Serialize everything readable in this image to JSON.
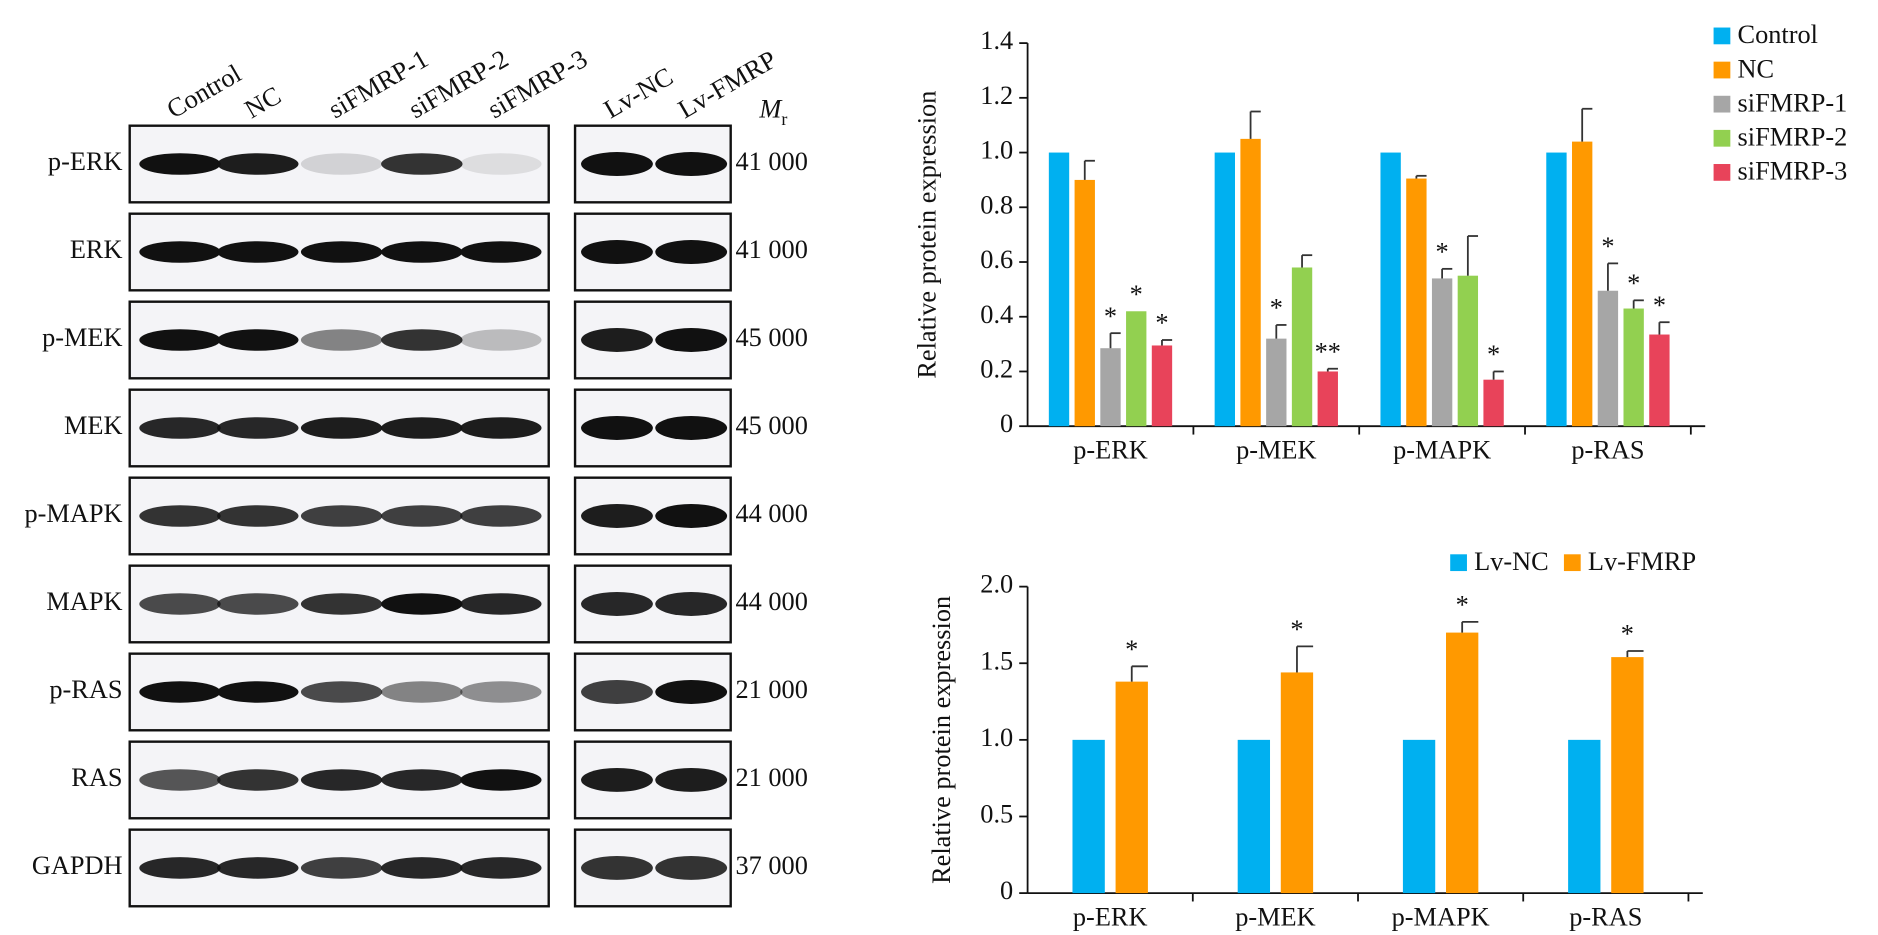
{
  "blot": {
    "lanes_left": [
      "Control",
      "NC",
      "siFMRP-1",
      "siFMRP-2",
      "siFMRP-3"
    ],
    "lanes_right": [
      "Lv-NC",
      "Lv-FMRP"
    ],
    "mr_label": {
      "symbol": "M",
      "subscript": "r"
    },
    "rows": [
      {
        "protein": "p-ERK",
        "mr": "41 000"
      },
      {
        "protein": "ERK",
        "mr": "41 000"
      },
      {
        "protein": "p-MEK",
        "mr": "45 000"
      },
      {
        "protein": "MEK",
        "mr": "45 000"
      },
      {
        "protein": "p-MAPK",
        "mr": "44 000"
      },
      {
        "protein": "MAPK",
        "mr": "44 000"
      },
      {
        "protein": "p-RAS",
        "mr": "21 000"
      },
      {
        "protein": "RAS",
        "mr": "21 000"
      },
      {
        "protein": "GAPDH",
        "mr": "37 000"
      }
    ]
  },
  "chart_data": [
    {
      "type": "bar",
      "y_label": "Relative protein expression",
      "categories": [
        "p-ERK",
        "p-MEK",
        "p-MAPK",
        "p-RAS"
      ],
      "ylim": [
        0,
        1.4
      ],
      "yticks": [
        0,
        0.2,
        0.4,
        0.6,
        0.8,
        {
          "value": 1,
          "label": "1.0"
        },
        1.2,
        1.4
      ],
      "legend": "right",
      "series": [
        {
          "name": "Control",
          "color": "#00b0f0",
          "values": [
            1,
            1,
            1,
            1
          ],
          "errors": [
            0,
            0,
            0,
            0
          ],
          "significance": [
            null,
            null,
            null,
            null
          ]
        },
        {
          "name": "NC",
          "color": "#ff9900",
          "values": [
            0.9,
            1.05,
            0.905,
            1.04
          ],
          "errors": [
            0.07,
            0.1,
            0.01,
            0.12
          ],
          "significance": [
            null,
            null,
            null,
            null
          ]
        },
        {
          "name": "siFMRP-1",
          "color": "#a6a6a6",
          "values": [
            0.285,
            0.32,
            0.54,
            0.495
          ],
          "errors": [
            0.055,
            0.05,
            0.035,
            0.1
          ],
          "significance": [
            "*",
            "*",
            "*",
            "*"
          ]
        },
        {
          "name": "siFMRP-2",
          "color": "#92d050",
          "values": [
            0.42,
            0.58,
            0.55,
            0.43
          ],
          "errors": [
            0,
            0.045,
            0.145,
            0.03
          ],
          "significance": [
            "*",
            null,
            null,
            "*"
          ]
        },
        {
          "name": "siFMRP-3",
          "color": "#e8435a",
          "values": [
            0.295,
            0.2,
            0.17,
            0.335
          ],
          "errors": [
            0.02,
            0.01,
            0.03,
            0.045
          ],
          "significance": [
            "*",
            "**",
            "*",
            "*"
          ]
        }
      ]
    },
    {
      "type": "bar",
      "y_label": "Relative protein expression",
      "categories": [
        "p-ERK",
        "p-MEK",
        "p-MAPK",
        "p-RAS"
      ],
      "ylim": [
        0,
        2
      ],
      "yticks": [
        0,
        0.5,
        {
          "value": 1,
          "label": "1.0"
        },
        1.5,
        {
          "value": 2,
          "label": "2.0"
        }
      ],
      "legend": "top",
      "series": [
        {
          "name": "Lv-NC",
          "color": "#00b0f0",
          "values": [
            1,
            1,
            1,
            1
          ],
          "errors": [
            0,
            0,
            0,
            0
          ],
          "significance": [
            null,
            null,
            null,
            null
          ]
        },
        {
          "name": "Lv-FMRP",
          "color": "#ff9900",
          "values": [
            1.38,
            1.44,
            1.7,
            1.54
          ],
          "errors": [
            0.1,
            0.17,
            0.07,
            0.04
          ],
          "significance": [
            "*",
            "*",
            "*",
            "*"
          ]
        }
      ]
    }
  ]
}
